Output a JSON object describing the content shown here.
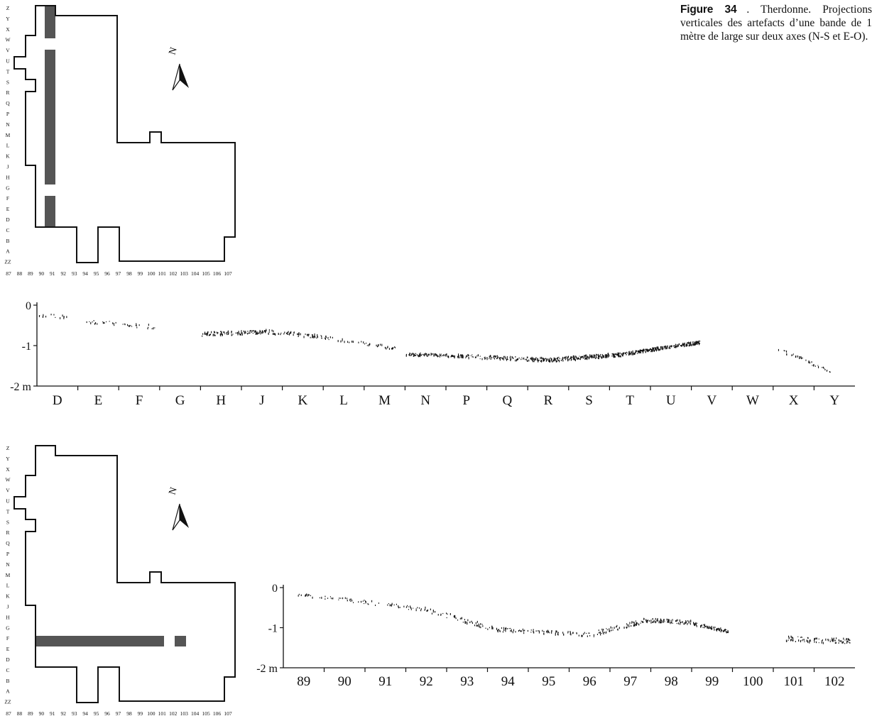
{
  "caption": {
    "label": "Figure 34",
    "text": ". Therdonne. Projections verticales des artefacts d’une bande de 1 mètre de large sur deux axes (N-S et E-O)."
  },
  "plan_row_labels": [
    "Z",
    "Y",
    "X",
    "W",
    "V",
    "U",
    "T",
    "S",
    "R",
    "Q",
    "P",
    "N",
    "M",
    "L",
    "K",
    "J",
    "H",
    "G",
    "F",
    "E",
    "D",
    "C",
    "B",
    "A",
    "ZZ"
  ],
  "plan_col_labels": [
    "87",
    "88",
    "89",
    "90",
    "91",
    "92",
    "93",
    "94",
    "95",
    "96",
    "97",
    "98",
    "99",
    "100",
    "101",
    "102",
    "103",
    "104",
    "105",
    "106",
    "107"
  ],
  "north_label": "N",
  "colors": {
    "band": "#555555",
    "ink": "#111111"
  },
  "chart_data": [
    {
      "type": "scatter",
      "title": "",
      "axis": "N-S",
      "categories": [
        "D",
        "E",
        "F",
        "G",
        "H",
        "J",
        "K",
        "L",
        "M",
        "N",
        "P",
        "Q",
        "R",
        "S",
        "T",
        "U",
        "V",
        "W",
        "X",
        "Y"
      ],
      "y_ticks": [
        "0",
        "-1",
        "-2 m"
      ],
      "ylim": [
        -2,
        0
      ],
      "xlim": [
        0,
        20
      ],
      "grid": false,
      "segments": [
        {
          "x": [
            0.05,
            0.8
          ],
          "y": [
            -0.25,
            -0.3
          ],
          "density": 14,
          "spread": 0.04
        },
        {
          "x": [
            1.2,
            2.9
          ],
          "y": [
            -0.4,
            -0.55
          ],
          "density": 40,
          "spread": 0.05
        },
        {
          "x": [
            4.0,
            5.6
          ],
          "y": [
            -0.72,
            -0.66
          ],
          "density": 120,
          "spread": 0.05
        },
        {
          "x": [
            5.6,
            6.9
          ],
          "y": [
            -0.66,
            -0.78
          ],
          "density": 60,
          "spread": 0.05
        },
        {
          "x": [
            6.9,
            8.8
          ],
          "y": [
            -0.78,
            -1.08
          ],
          "density": 50,
          "spread": 0.04
        },
        {
          "x": [
            9.0,
            10.5
          ],
          "y": [
            -1.22,
            -1.27
          ],
          "density": 110,
          "spread": 0.04
        },
        {
          "x": [
            10.5,
            12.5
          ],
          "y": [
            -1.27,
            -1.36
          ],
          "density": 130,
          "spread": 0.05
        },
        {
          "x": [
            12.5,
            14.3
          ],
          "y": [
            -1.36,
            -1.22
          ],
          "density": 220,
          "spread": 0.05
        },
        {
          "x": [
            14.3,
            16.2
          ],
          "y": [
            -1.22,
            -0.92
          ],
          "density": 260,
          "spread": 0.04
        },
        {
          "x": [
            18.1,
            19.4
          ],
          "y": [
            -1.08,
            -1.65
          ],
          "density": 40,
          "spread": 0.05
        }
      ]
    },
    {
      "type": "scatter",
      "title": "",
      "axis": "E-O",
      "categories": [
        "89",
        "90",
        "91",
        "92",
        "93",
        "94",
        "95",
        "96",
        "97",
        "98",
        "99",
        "100",
        "101",
        "102"
      ],
      "y_ticks": [
        "0",
        "-1",
        "-2 m"
      ],
      "ylim": [
        -2,
        0
      ],
      "xlim": [
        0,
        14
      ],
      "grid": false,
      "segments": [
        {
          "x": [
            0.1,
            1.5
          ],
          "y": [
            -0.15,
            -0.3
          ],
          "density": 25,
          "spread": 0.04
        },
        {
          "x": [
            1.5,
            3.5
          ],
          "y": [
            -0.3,
            -0.55
          ],
          "density": 55,
          "spread": 0.05
        },
        {
          "x": [
            3.5,
            5.2
          ],
          "y": [
            -0.55,
            -1.05
          ],
          "density": 60,
          "spread": 0.06
        },
        {
          "x": [
            5.2,
            7.6
          ],
          "y": [
            -1.05,
            -1.18
          ],
          "density": 90,
          "spread": 0.05
        },
        {
          "x": [
            7.6,
            8.9
          ],
          "y": [
            -1.15,
            -0.82
          ],
          "density": 70,
          "spread": 0.06
        },
        {
          "x": [
            8.9,
            10.0
          ],
          "y": [
            -0.82,
            -0.88
          ],
          "density": 80,
          "spread": 0.05
        },
        {
          "x": [
            10.0,
            10.9
          ],
          "y": [
            -0.9,
            -1.1
          ],
          "density": 80,
          "spread": 0.04
        },
        {
          "x": [
            12.3,
            13.9
          ],
          "y": [
            -1.28,
            -1.35
          ],
          "density": 90,
          "spread": 0.07
        }
      ]
    }
  ]
}
